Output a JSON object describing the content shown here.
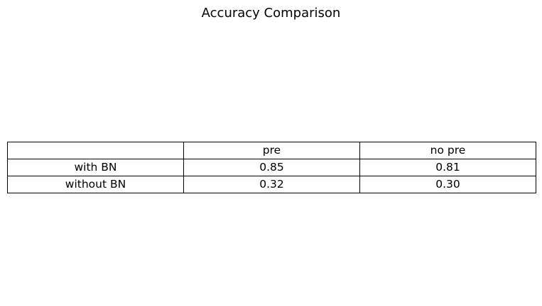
{
  "chart_data": {
    "type": "table",
    "title": "Accuracy Comparison",
    "columns": [
      "",
      "pre",
      "no pre"
    ],
    "rows": [
      {
        "label": "with BN",
        "values": [
          "0.85",
          "0.81"
        ]
      },
      {
        "label": "without BN",
        "values": [
          "0.32",
          "0.30"
        ]
      }
    ]
  }
}
